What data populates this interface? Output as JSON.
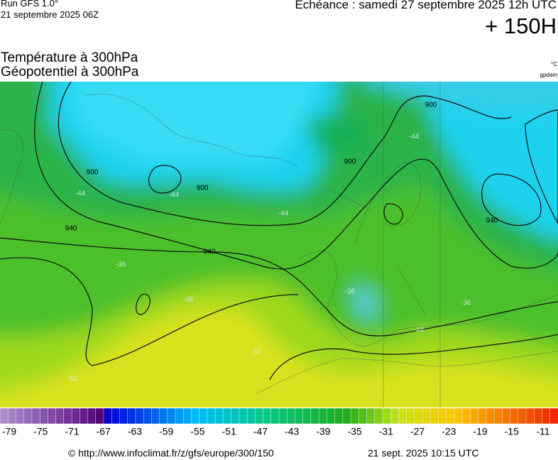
{
  "header": {
    "run": "Run GFS 1.0°",
    "run_date": "21 septembre 2025 06Z",
    "valid": "Echéance : samedi 27 septembre 2025 12h UTC",
    "lead": "+ 150H",
    "title_1": "Température à 300hPa",
    "title_2": "Géopotentiel à 300hPa",
    "unit_1": "°C",
    "unit_2": "gpdam"
  },
  "map": {
    "contour_labels": [
      "900",
      "900",
      "900",
      "900",
      "940",
      "940",
      "940",
      "-44",
      "-44",
      "-44",
      "-44",
      "-44",
      "-36",
      "-36",
      "-36",
      "-36",
      "52",
      "52"
    ]
  },
  "colorbar": {
    "labels": [
      -79,
      -75,
      -71,
      -67,
      -63,
      -59,
      -55,
      -51,
      -47,
      -43,
      -39,
      -35,
      -31,
      -27,
      -23,
      -19,
      -15,
      -11
    ]
  },
  "footer": {
    "source": "© http://www.infoclimat.fr/z/gfs/europe/300/150",
    "issued": "21 sept. 2025 10:15 UTC"
  }
}
